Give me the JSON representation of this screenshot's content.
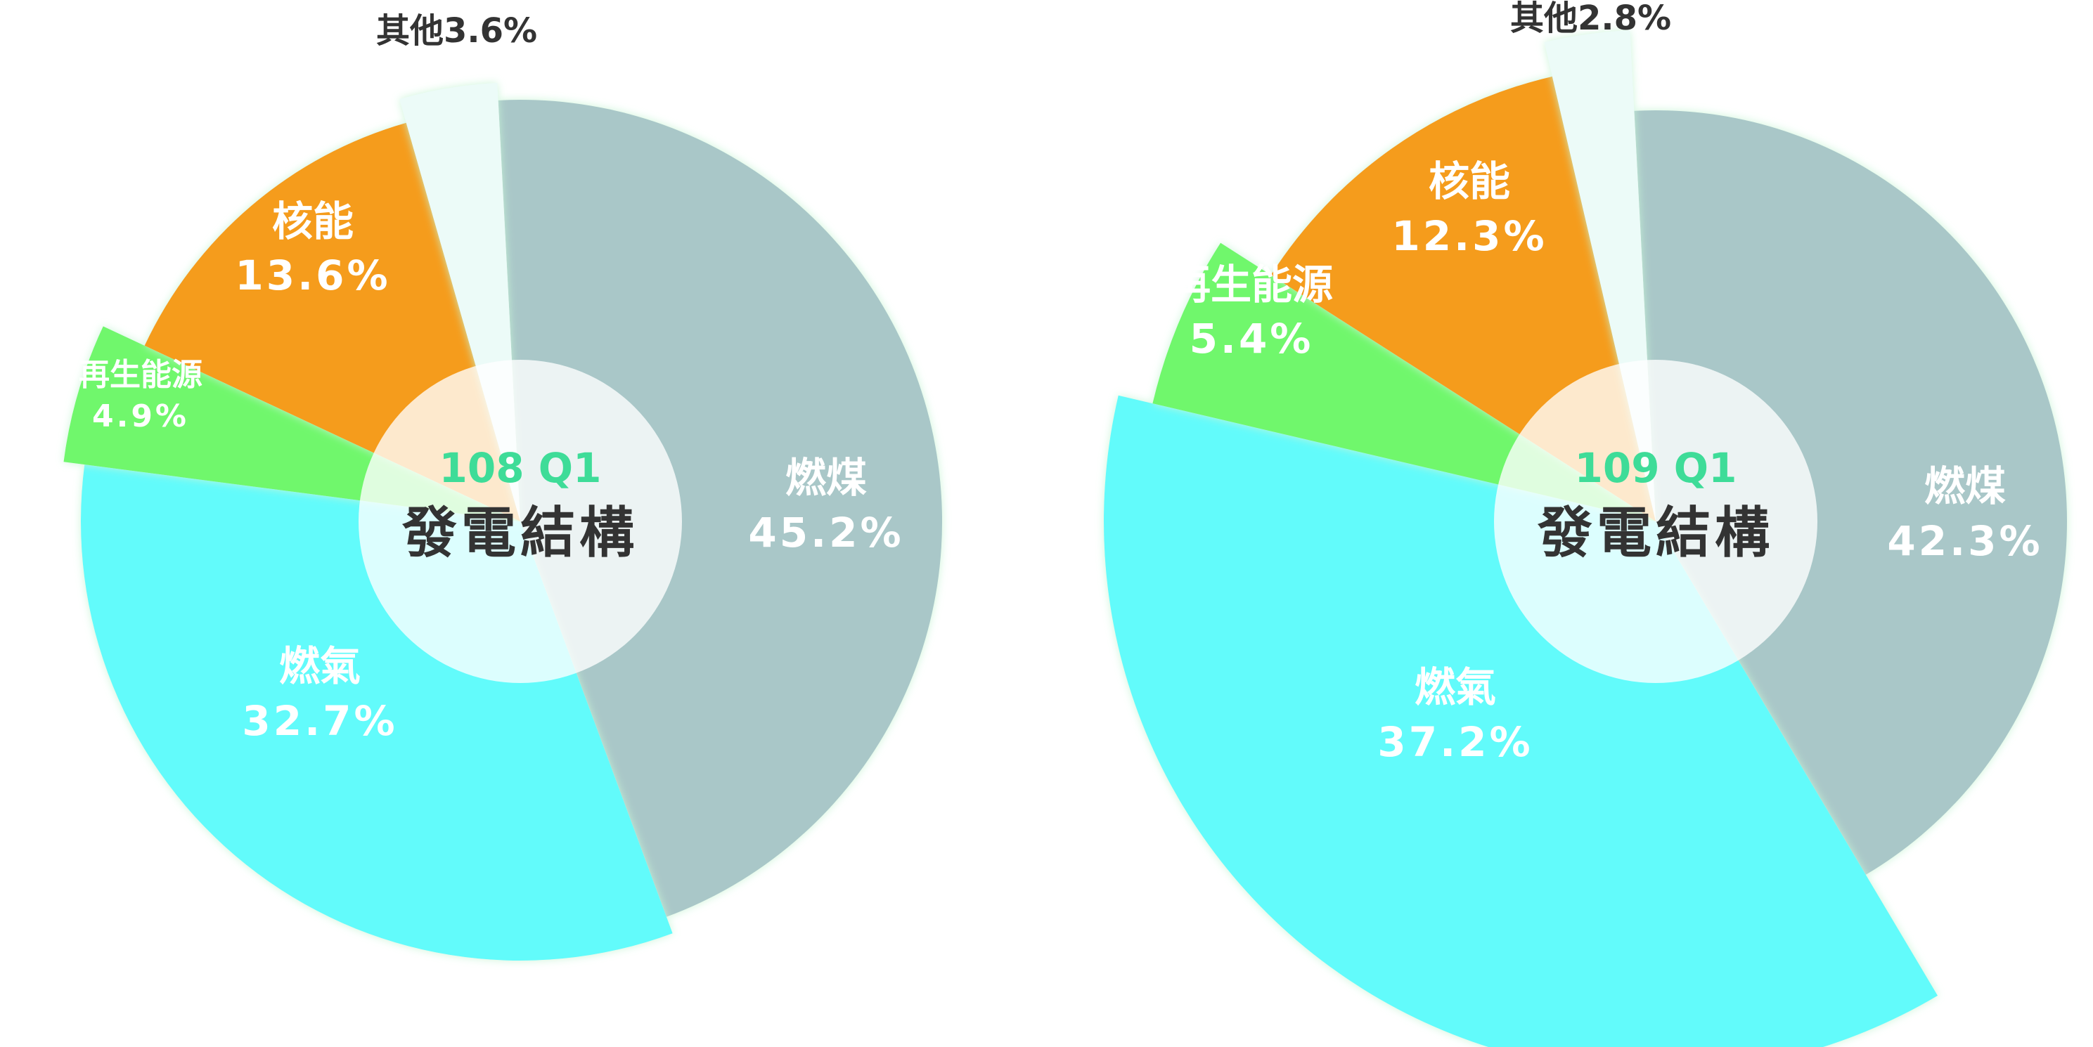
{
  "colors": {
    "coal": "#a9c7c8",
    "gas": "#62fbfb",
    "renewable": "#6ff76c",
    "nuclear": "#f59c1a",
    "other": "#ecfbf8",
    "hole": "#ffffff",
    "period_text": "#3edc98",
    "title_text": "#333333"
  },
  "chart_data": [
    {
      "type": "pie",
      "center_period": "108 Q1",
      "center_title": "發電結構",
      "slices": [
        {
          "key": "coal",
          "name": "燃煤",
          "value": 45.2,
          "value_label": "45.2%",
          "color": "#a9c7c8"
        },
        {
          "key": "gas",
          "name": "燃氣",
          "value": 32.7,
          "value_label": "32.7%",
          "color": "#62fbfb"
        },
        {
          "key": "renewable",
          "name": "再生能源",
          "value": 4.9,
          "value_label": "4.9%",
          "color": "#6ff76c"
        },
        {
          "key": "nuclear",
          "name": "核能",
          "value": 13.6,
          "value_label": "13.6%",
          "color": "#f59c1a"
        },
        {
          "key": "other",
          "name": "其他",
          "value": 3.6,
          "value_label": "其他3.6%",
          "color": "#ecfbf8"
        }
      ]
    },
    {
      "type": "pie",
      "center_period": "109 Q1",
      "center_title": "發電結構",
      "slices": [
        {
          "key": "coal",
          "name": "燃煤",
          "value": 42.3,
          "value_label": "42.3%",
          "color": "#a9c7c8"
        },
        {
          "key": "gas",
          "name": "燃氣",
          "value": 37.2,
          "value_label": "37.2%",
          "color": "#62fbfb"
        },
        {
          "key": "renewable",
          "name": "再生能源",
          "value": 5.4,
          "value_label": "5.4%",
          "color": "#6ff76c"
        },
        {
          "key": "nuclear",
          "name": "核能",
          "value": 12.3,
          "value_label": "12.3%",
          "color": "#f59c1a"
        },
        {
          "key": "other",
          "name": "其他",
          "value": 2.8,
          "value_label": "其他2.8%",
          "color": "#ecfbf8"
        }
      ]
    }
  ]
}
